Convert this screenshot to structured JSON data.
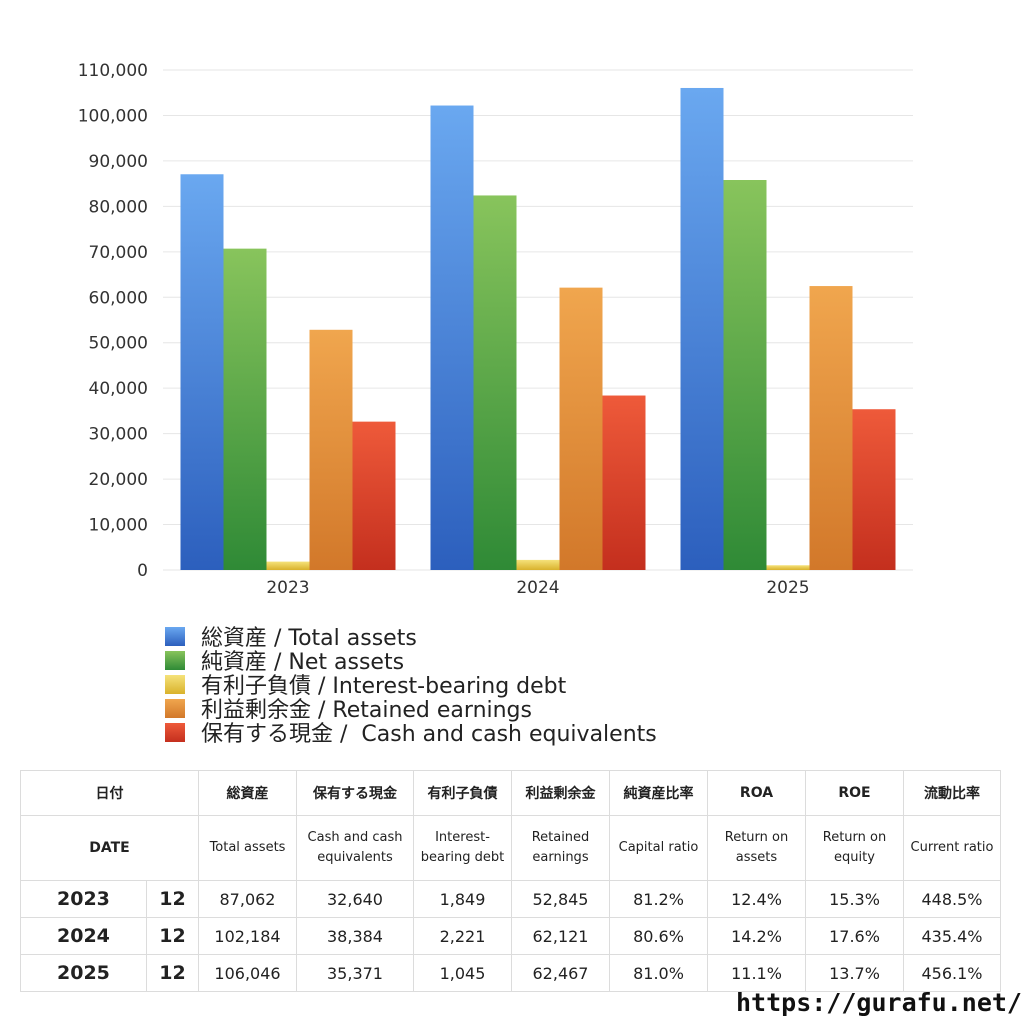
{
  "chart_data": {
    "type": "bar",
    "categories": [
      "2023",
      "2024",
      "2025"
    ],
    "series": [
      {
        "name": "総資産 / Total assets",
        "values": [
          87062,
          102184,
          106046
        ],
        "color_top": "#6aa8f0",
        "color_bottom": "#2c5fbd"
      },
      {
        "name": "純資産 / Net assets",
        "values": [
          70700,
          82400,
          85800
        ],
        "color_top": "#88c45c",
        "color_bottom": "#2f8a36"
      },
      {
        "name": "有利子負債 / Interest-bearing debt",
        "values": [
          1849,
          2221,
          1045
        ],
        "color_top": "#f5e27a",
        "color_bottom": "#d9b22c"
      },
      {
        "name": "利益剰余金 / Retained earnings",
        "values": [
          52845,
          62121,
          62467
        ],
        "color_top": "#f0a64e",
        "color_bottom": "#d2782a"
      },
      {
        "name": "保有する現金 /  Cash and cash equivalents",
        "values": [
          32640,
          38384,
          35371
        ],
        "color_top": "#ee5a3a",
        "color_bottom": "#c42f1e"
      }
    ],
    "ylim": [
      0,
      110000
    ],
    "yticks": [
      0,
      10000,
      20000,
      30000,
      40000,
      50000,
      60000,
      70000,
      80000,
      90000,
      100000,
      110000
    ],
    "ytick_labels": [
      "0",
      "10,000",
      "20,000",
      "30,000",
      "40,000",
      "50,000",
      "60,000",
      "70,000",
      "80,000",
      "90,000",
      "100,000",
      "110,000"
    ],
    "grid": true,
    "legend_placement": "bottom-left"
  },
  "table": {
    "head_jp": [
      "日付",
      "",
      "総資産",
      "保有する現金",
      "有利子負債",
      "利益剰余金",
      "純資産比率",
      "ROA",
      "ROE",
      "流動比率"
    ],
    "head_en": [
      "DATE",
      "",
      "Total assets",
      "Cash and cash equivalents",
      "Interest-bearing debt",
      "Retained earnings",
      "Capital ratio",
      "Return on assets",
      "Return on equity",
      "Current ratio"
    ],
    "rows": [
      [
        "2023",
        "12",
        "87,062",
        "32,640",
        "1,849",
        "52,845",
        "81.2%",
        "12.4%",
        "15.3%",
        "448.5%"
      ],
      [
        "2024",
        "12",
        "102,184",
        "38,384",
        "2,221",
        "62,121",
        "80.6%",
        "14.2%",
        "17.6%",
        "435.4%"
      ],
      [
        "2025",
        "12",
        "106,046",
        "35,371",
        "1,045",
        "62,467",
        "81.0%",
        "11.1%",
        "13.7%",
        "456.1%"
      ]
    ]
  },
  "footer": {
    "url": "https://gurafu.net/"
  }
}
